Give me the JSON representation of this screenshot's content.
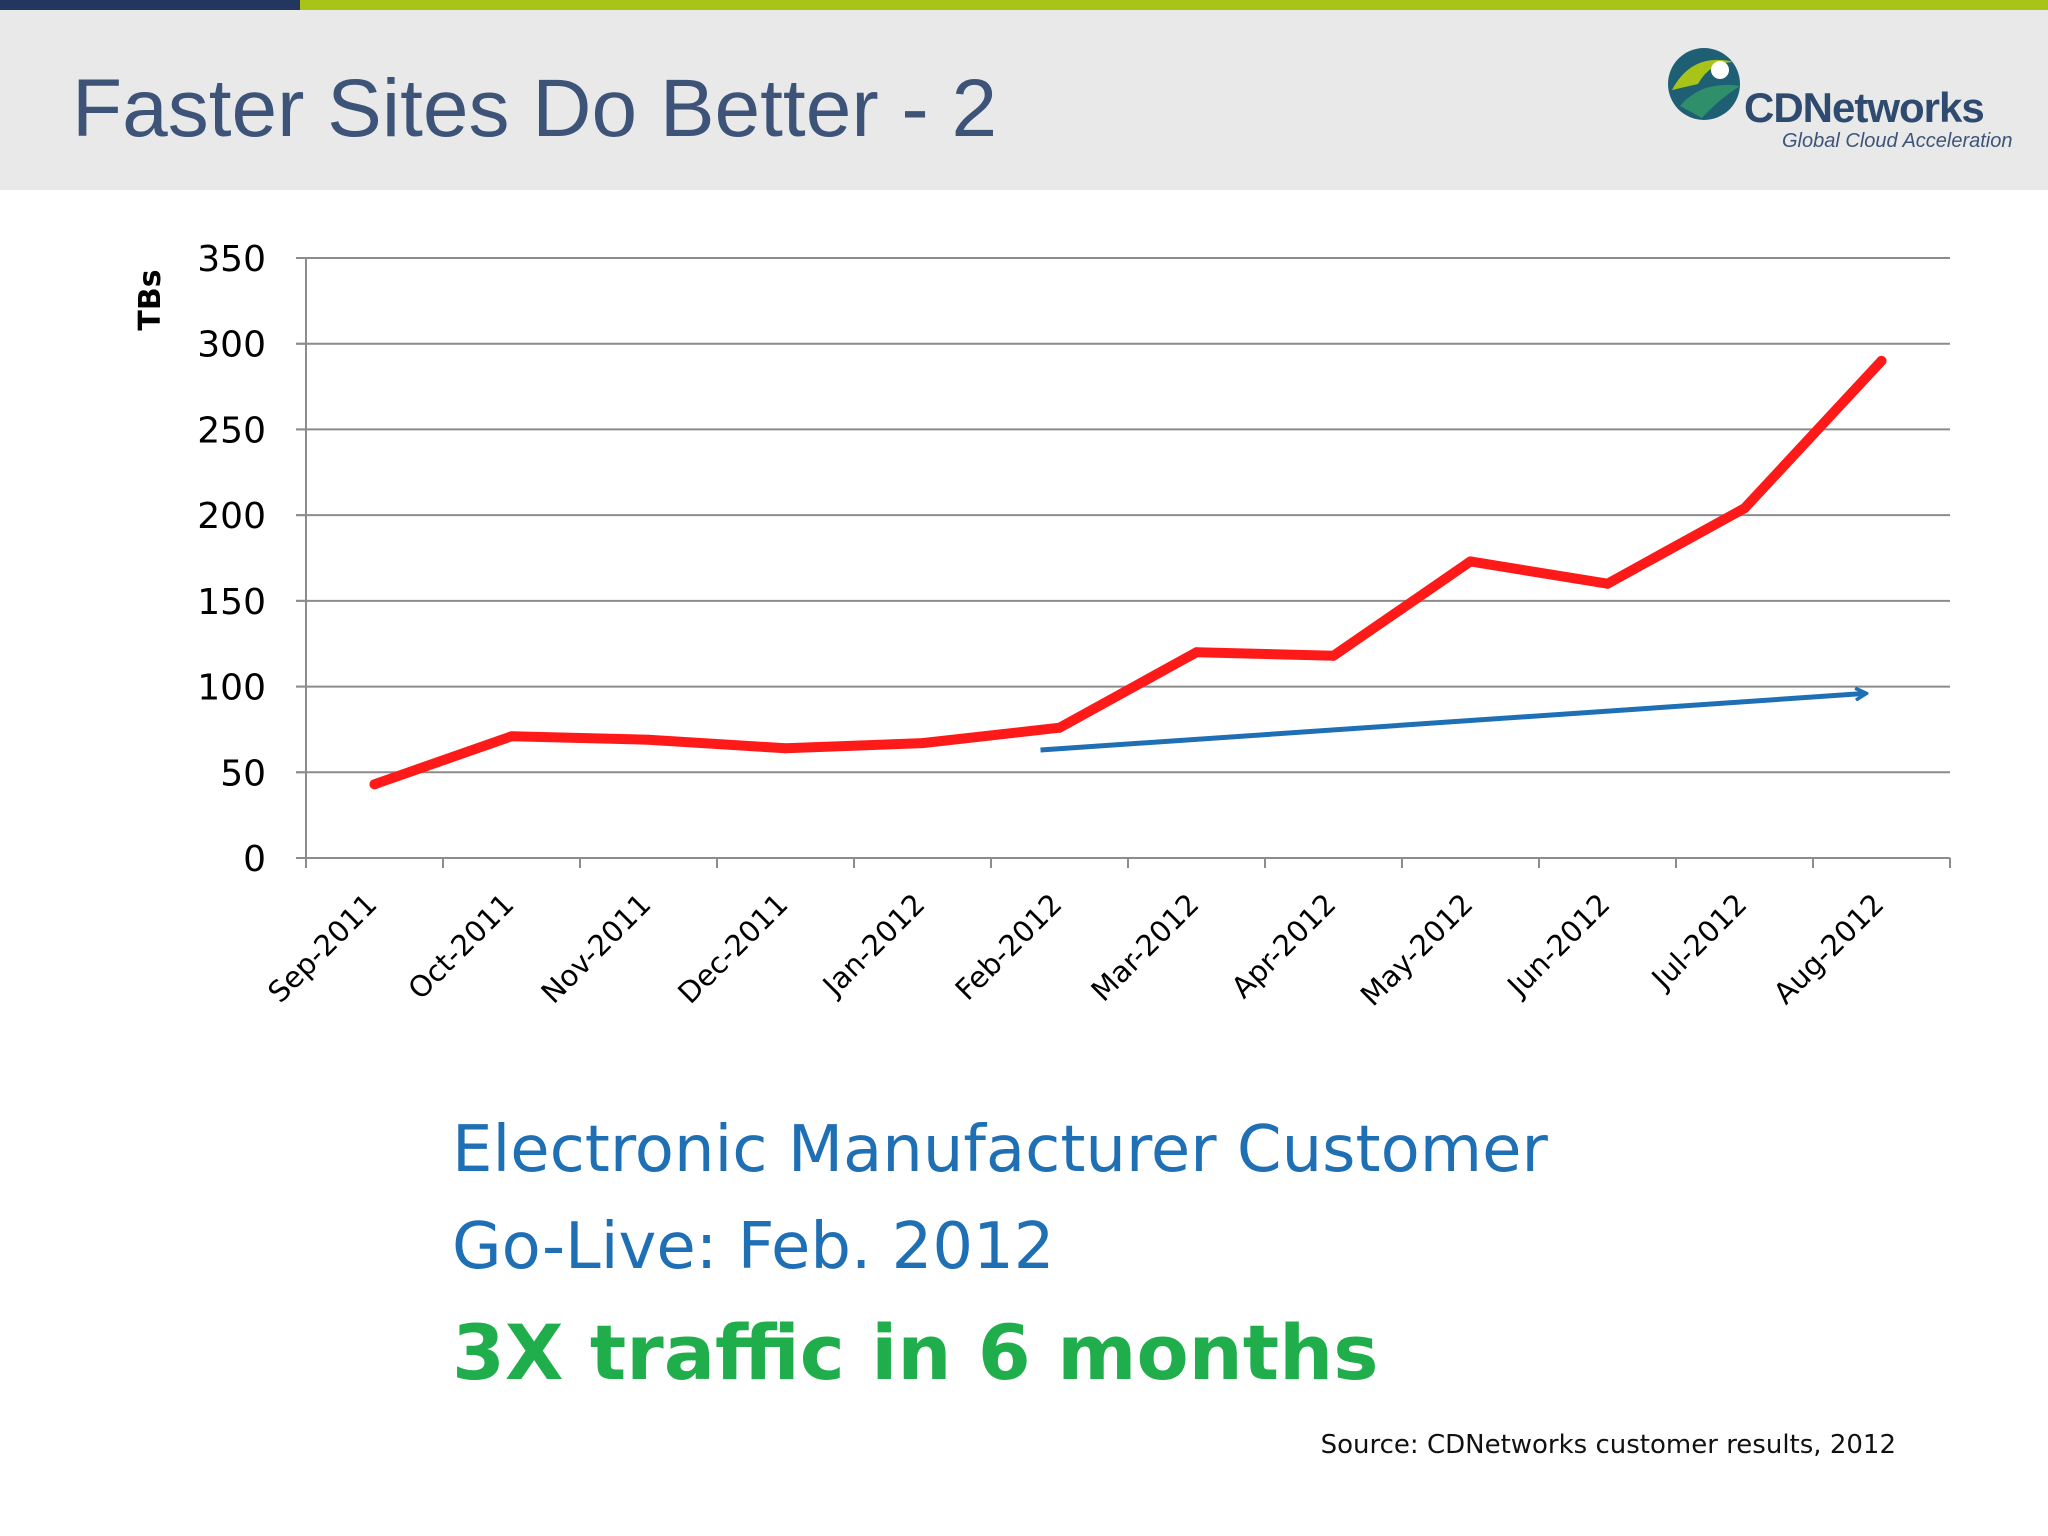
{
  "slide": {
    "title": "Faster Sites Do Better - 2",
    "logo_name": "CDNetworks",
    "logo_tagline": "Global Cloud Acceleration",
    "caption_line1": "Electronic Manufacturer Customer",
    "caption_line2": "Go-Live: Feb. 2012",
    "caption_line3": "3X traffic in 6 months",
    "source": "Source: CDNetworks customer results, 2012"
  },
  "colors": {
    "bar_navy": "#23365f",
    "bar_lime": "#a8c419",
    "series": "#ff1a1a",
    "trend_arrow": "#1f6fb5",
    "caption_blue": "#1f6fb5",
    "caption_green": "#1fae4b"
  },
  "chart_data": {
    "type": "line",
    "title": "",
    "xlabel": "",
    "ylabel": "TBs",
    "ylim": [
      0,
      350
    ],
    "yticks": [
      0,
      50,
      100,
      150,
      200,
      250,
      300,
      350
    ],
    "grid": true,
    "categories": [
      "Sep-2011",
      "Oct-2011",
      "Nov-2011",
      "Dec-2011",
      "Jan-2012",
      "Feb-2012",
      "Mar-2012",
      "Apr-2012",
      "May-2012",
      "Jun-2012",
      "Jul-2012",
      "Aug-2012"
    ],
    "series": [
      {
        "values": [
          43,
          71,
          69,
          64,
          67,
          76,
          120,
          118,
          173,
          160,
          204,
          290
        ]
      }
    ],
    "annotations": [
      {
        "type": "arrow",
        "from": {
          "category": "Feb-2012",
          "y": 63
        },
        "to": {
          "category": "Aug-2012",
          "y": 96
        }
      }
    ]
  }
}
